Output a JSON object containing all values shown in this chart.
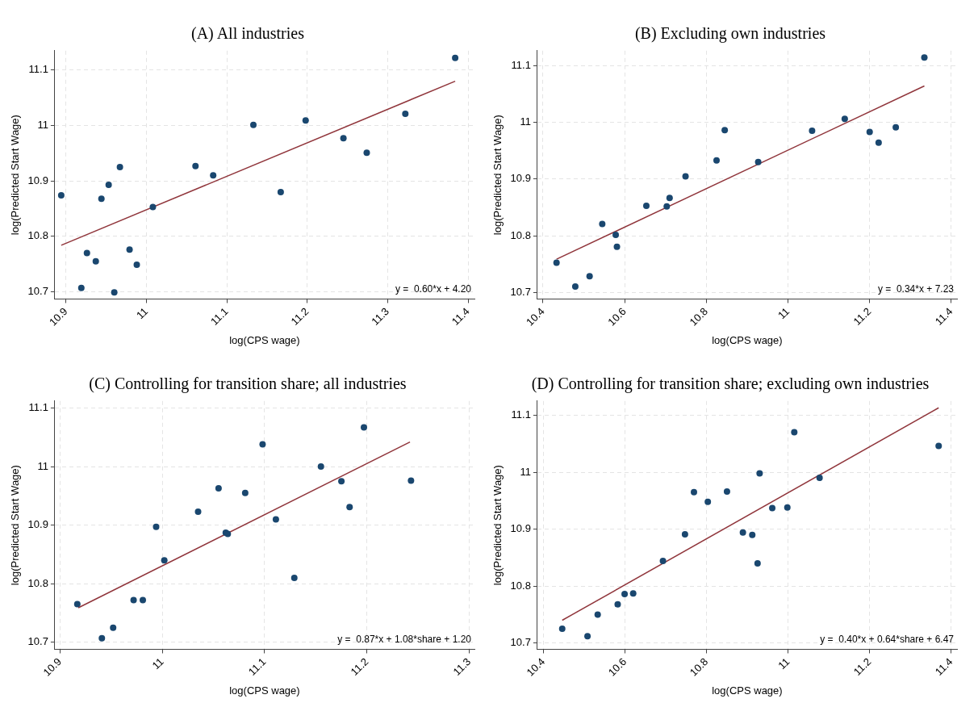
{
  "chart_data": [
    {
      "type": "scatter",
      "title": "(A)  All industries",
      "xlabel": "log(CPS wage)",
      "ylabel": "log(Predicted Start Wage)",
      "annotations": [
        "y =  0.60*x + 4.20"
      ],
      "xlim": [
        10.886,
        11.408
      ],
      "ylim": [
        10.687,
        11.135
      ],
      "xticks": [
        10.9,
        11,
        11.1,
        11.2,
        11.3,
        11.4
      ],
      "yticks": [
        10.7,
        10.8,
        10.9,
        11,
        11.1
      ],
      "grid": true,
      "series": [
        {
          "type": "scatter",
          "color": "#1a476f",
          "marker": "circle",
          "x": [
            10.894,
            10.919,
            10.926,
            10.937,
            10.944,
            10.953,
            10.96,
            10.967,
            10.979,
            10.988,
            11.008,
            11.061,
            11.083,
            11.133,
            11.167,
            11.198,
            11.245,
            11.274,
            11.322,
            11.384
          ],
          "values": [
            10.874,
            10.707,
            10.77,
            10.755,
            10.868,
            10.893,
            10.699,
            10.925,
            10.776,
            10.749,
            10.853,
            10.927,
            10.91,
            11.001,
            10.88,
            11.009,
            10.977,
            10.951,
            11.021,
            11.122
          ]
        },
        {
          "type": "line",
          "color": "#90353b",
          "marker": "none",
          "x": [
            10.894,
            11.384
          ],
          "values": [
            10.784,
            11.08
          ]
        }
      ]
    },
    {
      "type": "scatter",
      "title": "(B)  Excluding own industries",
      "xlabel": "log(CPS wage)",
      "ylabel": "log(Predicted Start Wage)",
      "annotations": [
        "y =  0.34*x + 7.23"
      ],
      "xlim": [
        10.386,
        11.414
      ],
      "ylim": [
        10.689,
        11.126
      ],
      "xticks": [
        10.4,
        10.6,
        10.8,
        11,
        11.2,
        11.4
      ],
      "yticks": [
        10.7,
        10.8,
        10.9,
        11,
        11.1
      ],
      "grid": true,
      "series": [
        {
          "type": "scatter",
          "color": "#1a476f",
          "marker": "circle",
          "x": [
            10.433,
            10.479,
            10.514,
            10.545,
            10.578,
            10.581,
            10.653,
            10.703,
            10.71,
            10.749,
            10.825,
            10.845,
            10.927,
            11.059,
            11.139,
            11.2,
            11.222,
            11.264,
            11.334
          ],
          "values": [
            10.753,
            10.711,
            10.729,
            10.821,
            10.802,
            10.781,
            10.853,
            10.852,
            10.867,
            10.905,
            10.933,
            10.986,
            10.93,
            10.985,
            11.006,
            10.983,
            10.964,
            10.991,
            11.114
          ]
        },
        {
          "type": "line",
          "color": "#90353b",
          "marker": "none",
          "x": [
            10.433,
            11.334
          ],
          "values": [
            10.759,
            11.064
          ]
        }
      ]
    },
    {
      "type": "scatter",
      "title": "(C)  Controlling for transition share; all industries",
      "xlabel": "log(CPS wage)",
      "ylabel": "log(Predicted Start Wage)",
      "annotations": [
        "y =  0.87*x + 1.08*share + 1.20"
      ],
      "xlim": [
        10.895,
        11.305
      ],
      "ylim": [
        10.688,
        11.112
      ],
      "xticks": [
        10.9,
        11,
        11.1,
        11.2,
        11.3
      ],
      "yticks": [
        10.7,
        10.8,
        10.9,
        11,
        11.1
      ],
      "grid": true,
      "series": [
        {
          "type": "scatter",
          "color": "#1a476f",
          "marker": "circle",
          "x": [
            10.917,
            10.941,
            10.952,
            10.972,
            10.981,
            10.994,
            11.002,
            11.035,
            11.055,
            11.062,
            11.064,
            11.081,
            11.098,
            11.111,
            11.129,
            11.155,
            11.175,
            11.183,
            11.197,
            11.243
          ],
          "values": [
            10.765,
            10.707,
            10.725,
            10.772,
            10.772,
            10.897,
            10.84,
            10.923,
            10.963,
            10.887,
            10.885,
            10.955,
            11.038,
            10.91,
            10.81,
            11.0,
            10.975,
            10.931,
            11.067,
            10.976
          ]
        },
        {
          "type": "line",
          "color": "#90353b",
          "marker": "none",
          "x": [
            10.918,
            11.242
          ],
          "values": [
            10.759,
            11.042
          ]
        }
      ]
    },
    {
      "type": "scatter",
      "title": "(D)  Controlling for transition share; excluding own industries",
      "xlabel": "log(CPS wage)",
      "ylabel": "log(Predicted Start Wage)",
      "annotations": [
        "y =  0.40*x + 0.64*share + 6.47"
      ],
      "xlim": [
        10.385,
        11.414
      ],
      "ylim": [
        10.689,
        11.125
      ],
      "xticks": [
        10.4,
        10.6,
        10.8,
        11,
        11.2,
        11.4
      ],
      "yticks": [
        10.7,
        10.8,
        10.9,
        11,
        11.1
      ],
      "grid": true,
      "series": [
        {
          "type": "scatter",
          "color": "#1a476f",
          "marker": "circle",
          "x": [
            10.446,
            10.508,
            10.533,
            10.582,
            10.599,
            10.62,
            10.693,
            10.747,
            10.769,
            10.803,
            10.85,
            10.889,
            10.912,
            10.925,
            10.93,
            10.961,
            10.998,
            11.015,
            11.077,
            11.369
          ],
          "values": [
            10.725,
            10.712,
            10.75,
            10.768,
            10.786,
            10.787,
            10.844,
            10.891,
            10.965,
            10.948,
            10.966,
            10.894,
            10.89,
            10.84,
            10.998,
            10.937,
            10.938,
            11.07,
            10.99,
            11.046
          ]
        },
        {
          "type": "line",
          "color": "#90353b",
          "marker": "none",
          "x": [
            10.446,
            11.369
          ],
          "values": [
            10.74,
            11.113
          ]
        }
      ]
    }
  ]
}
